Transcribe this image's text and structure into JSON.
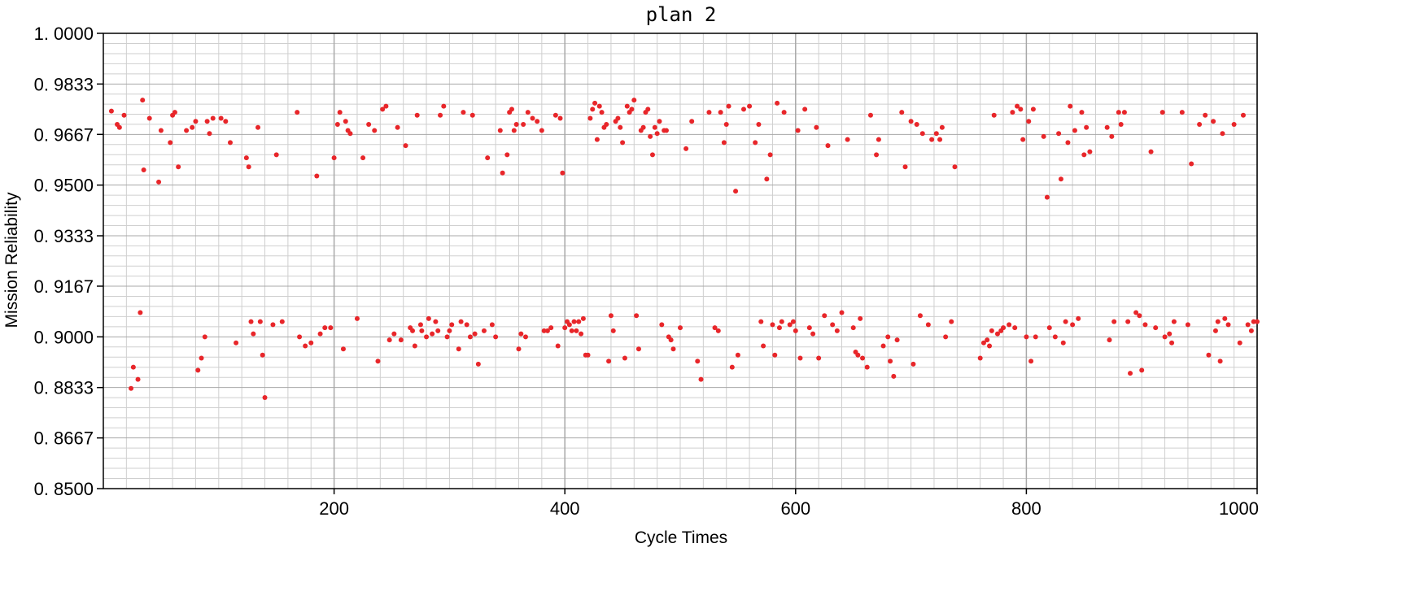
{
  "chart_data": {
    "type": "scatter",
    "title": "plan 2",
    "xlabel": "Cycle Times",
    "ylabel": "Mission Reliability",
    "xlim": [
      0,
      1000
    ],
    "ylim": [
      0.85,
      1.0
    ],
    "x_ticks": [
      200,
      400,
      600,
      800,
      1000
    ],
    "x_tick_labels": [
      "200",
      "400",
      "600",
      "800",
      "1000"
    ],
    "y_ticks": [
      0.85,
      0.8667,
      0.8833,
      0.9,
      0.9167,
      0.9333,
      0.95,
      0.9667,
      0.9833,
      1.0
    ],
    "y_tick_labels": [
      "0. 8500",
      "0. 8667",
      "0. 8833",
      "0. 9000",
      "0. 9167",
      "0. 9333",
      "0. 9500",
      "0. 9667",
      "0. 9833",
      "1. 0000"
    ],
    "grid": true,
    "marker_color": "#e8262a",
    "series": [
      {
        "points": [
          [
            7,
            0.9744
          ],
          [
            12,
            0.97
          ],
          [
            14,
            0.969
          ],
          [
            18,
            0.973
          ],
          [
            24,
            0.883
          ],
          [
            26,
            0.89
          ],
          [
            30,
            0.886
          ],
          [
            32,
            0.908
          ],
          [
            34,
            0.978
          ],
          [
            35,
            0.955
          ],
          [
            40,
            0.972
          ],
          [
            48,
            0.951
          ],
          [
            50,
            0.968
          ],
          [
            58,
            0.964
          ],
          [
            60,
            0.973
          ],
          [
            62,
            0.974
          ],
          [
            65,
            0.956
          ],
          [
            72,
            0.968
          ],
          [
            77,
            0.969
          ],
          [
            80,
            0.971
          ],
          [
            82,
            0.889
          ],
          [
            85,
            0.893
          ],
          [
            88,
            0.9
          ],
          [
            90,
            0.971
          ],
          [
            92,
            0.967
          ],
          [
            95,
            0.972
          ],
          [
            102,
            0.972
          ],
          [
            106,
            0.971
          ],
          [
            110,
            0.964
          ],
          [
            115,
            0.898
          ],
          [
            124,
            0.959
          ],
          [
            126,
            0.956
          ],
          [
            128,
            0.905
          ],
          [
            130,
            0.901
          ],
          [
            134,
            0.969
          ],
          [
            136,
            0.905
          ],
          [
            138,
            0.894
          ],
          [
            140,
            0.88
          ],
          [
            147,
            0.904
          ],
          [
            150,
            0.96
          ],
          [
            155,
            0.905
          ],
          [
            168,
            0.974
          ],
          [
            170,
            0.9
          ],
          [
            175,
            0.897
          ],
          [
            180,
            0.898
          ],
          [
            185,
            0.953
          ],
          [
            188,
            0.901
          ],
          [
            192,
            0.903
          ],
          [
            197,
            0.903
          ],
          [
            200,
            0.959
          ],
          [
            203,
            0.97
          ],
          [
            205,
            0.974
          ],
          [
            208,
            0.896
          ],
          [
            210,
            0.971
          ],
          [
            212,
            0.968
          ],
          [
            214,
            0.967
          ],
          [
            220,
            0.906
          ],
          [
            225,
            0.959
          ],
          [
            230,
            0.97
          ],
          [
            235,
            0.968
          ],
          [
            238,
            0.892
          ],
          [
            242,
            0.975
          ],
          [
            245,
            0.976
          ],
          [
            248,
            0.899
          ],
          [
            252,
            0.901
          ],
          [
            255,
            0.969
          ],
          [
            258,
            0.899
          ],
          [
            262,
            0.963
          ],
          [
            266,
            0.903
          ],
          [
            268,
            0.902
          ],
          [
            270,
            0.897
          ],
          [
            272,
            0.973
          ],
          [
            275,
            0.904
          ],
          [
            276,
            0.902
          ],
          [
            280,
            0.9
          ],
          [
            282,
            0.906
          ],
          [
            285,
            0.901
          ],
          [
            288,
            0.905
          ],
          [
            290,
            0.902
          ],
          [
            292,
            0.973
          ],
          [
            295,
            0.976
          ],
          [
            298,
            0.9
          ],
          [
            300,
            0.902
          ],
          [
            302,
            0.904
          ],
          [
            308,
            0.896
          ],
          [
            310,
            0.905
          ],
          [
            312,
            0.974
          ],
          [
            315,
            0.904
          ],
          [
            318,
            0.9
          ],
          [
            320,
            0.973
          ],
          [
            322,
            0.901
          ],
          [
            325,
            0.891
          ],
          [
            330,
            0.902
          ],
          [
            333,
            0.959
          ],
          [
            337,
            0.904
          ],
          [
            340,
            0.9
          ],
          [
            344,
            0.968
          ],
          [
            346,
            0.954
          ],
          [
            350,
            0.96
          ],
          [
            352,
            0.974
          ],
          [
            354,
            0.975
          ],
          [
            356,
            0.968
          ],
          [
            358,
            0.97
          ],
          [
            360,
            0.896
          ],
          [
            362,
            0.901
          ],
          [
            364,
            0.97
          ],
          [
            366,
            0.9
          ],
          [
            368,
            0.974
          ],
          [
            372,
            0.972
          ],
          [
            376,
            0.971
          ],
          [
            380,
            0.968
          ],
          [
            382,
            0.902
          ],
          [
            385,
            0.902
          ],
          [
            388,
            0.903
          ],
          [
            392,
            0.973
          ],
          [
            394,
            0.897
          ],
          [
            396,
            0.972
          ],
          [
            398,
            0.954
          ],
          [
            400,
            0.903
          ],
          [
            402,
            0.905
          ],
          [
            404,
            0.904
          ],
          [
            406,
            0.902
          ],
          [
            408,
            0.905
          ],
          [
            410,
            0.902
          ],
          [
            412,
            0.905
          ],
          [
            414,
            0.901
          ],
          [
            416,
            0.906
          ],
          [
            418,
            0.894
          ],
          [
            420,
            0.894
          ],
          [
            422,
            0.972
          ],
          [
            424,
            0.975
          ],
          [
            426,
            0.977
          ],
          [
            428,
            0.965
          ],
          [
            430,
            0.976
          ],
          [
            432,
            0.974
          ],
          [
            434,
            0.969
          ],
          [
            436,
            0.97
          ],
          [
            438,
            0.892
          ],
          [
            440,
            0.907
          ],
          [
            442,
            0.902
          ],
          [
            444,
            0.971
          ],
          [
            446,
            0.972
          ],
          [
            448,
            0.969
          ],
          [
            450,
            0.964
          ],
          [
            452,
            0.893
          ],
          [
            454,
            0.976
          ],
          [
            456,
            0.974
          ],
          [
            458,
            0.975
          ],
          [
            460,
            0.978
          ],
          [
            462,
            0.907
          ],
          [
            464,
            0.896
          ],
          [
            466,
            0.968
          ],
          [
            468,
            0.969
          ],
          [
            470,
            0.974
          ],
          [
            472,
            0.975
          ],
          [
            474,
            0.966
          ],
          [
            476,
            0.96
          ],
          [
            478,
            0.969
          ],
          [
            480,
            0.967
          ],
          [
            482,
            0.971
          ],
          [
            484,
            0.904
          ],
          [
            486,
            0.968
          ],
          [
            488,
            0.968
          ],
          [
            490,
            0.9
          ],
          [
            492,
            0.899
          ],
          [
            494,
            0.896
          ],
          [
            500,
            0.903
          ],
          [
            505,
            0.962
          ],
          [
            510,
            0.971
          ],
          [
            515,
            0.892
          ],
          [
            518,
            0.886
          ],
          [
            525,
            0.974
          ],
          [
            530,
            0.903
          ],
          [
            533,
            0.902
          ],
          [
            535,
            0.974
          ],
          [
            538,
            0.964
          ],
          [
            540,
            0.97
          ],
          [
            542,
            0.976
          ],
          [
            545,
            0.89
          ],
          [
            548,
            0.948
          ],
          [
            550,
            0.894
          ],
          [
            555,
            0.975
          ],
          [
            560,
            0.976
          ],
          [
            565,
            0.964
          ],
          [
            568,
            0.97
          ],
          [
            570,
            0.905
          ],
          [
            572,
            0.897
          ],
          [
            575,
            0.952
          ],
          [
            578,
            0.96
          ],
          [
            580,
            0.904
          ],
          [
            582,
            0.894
          ],
          [
            584,
            0.977
          ],
          [
            586,
            0.903
          ],
          [
            588,
            0.905
          ],
          [
            590,
            0.974
          ],
          [
            595,
            0.904
          ],
          [
            598,
            0.905
          ],
          [
            600,
            0.902
          ],
          [
            602,
            0.968
          ],
          [
            604,
            0.893
          ],
          [
            608,
            0.975
          ],
          [
            612,
            0.903
          ],
          [
            615,
            0.901
          ],
          [
            618,
            0.969
          ],
          [
            620,
            0.893
          ],
          [
            625,
            0.907
          ],
          [
            628,
            0.963
          ],
          [
            632,
            0.904
          ],
          [
            636,
            0.902
          ],
          [
            640,
            0.908
          ],
          [
            645,
            0.965
          ],
          [
            650,
            0.903
          ],
          [
            652,
            0.895
          ],
          [
            654,
            0.894
          ],
          [
            656,
            0.906
          ],
          [
            658,
            0.893
          ],
          [
            662,
            0.89
          ],
          [
            665,
            0.973
          ],
          [
            670,
            0.96
          ],
          [
            672,
            0.965
          ],
          [
            676,
            0.897
          ],
          [
            680,
            0.9
          ],
          [
            682,
            0.892
          ],
          [
            685,
            0.887
          ],
          [
            688,
            0.899
          ],
          [
            692,
            0.974
          ],
          [
            695,
            0.956
          ],
          [
            700,
            0.971
          ],
          [
            702,
            0.891
          ],
          [
            705,
            0.97
          ],
          [
            708,
            0.907
          ],
          [
            710,
            0.967
          ],
          [
            715,
            0.904
          ],
          [
            718,
            0.965
          ],
          [
            722,
            0.967
          ],
          [
            725,
            0.965
          ],
          [
            727,
            0.969
          ],
          [
            730,
            0.9
          ],
          [
            735,
            0.905
          ],
          [
            738,
            0.956
          ],
          [
            760,
            0.893
          ],
          [
            763,
            0.898
          ],
          [
            766,
            0.899
          ],
          [
            768,
            0.897
          ],
          [
            770,
            0.902
          ],
          [
            772,
            0.973
          ],
          [
            775,
            0.901
          ],
          [
            778,
            0.902
          ],
          [
            780,
            0.903
          ],
          [
            785,
            0.904
          ],
          [
            788,
            0.974
          ],
          [
            790,
            0.903
          ],
          [
            792,
            0.976
          ],
          [
            795,
            0.975
          ],
          [
            797,
            0.965
          ],
          [
            800,
            0.9
          ],
          [
            802,
            0.971
          ],
          [
            804,
            0.892
          ],
          [
            806,
            0.975
          ],
          [
            808,
            0.9
          ],
          [
            815,
            0.966
          ],
          [
            818,
            0.946
          ],
          [
            820,
            0.903
          ],
          [
            825,
            0.9
          ],
          [
            828,
            0.967
          ],
          [
            830,
            0.952
          ],
          [
            832,
            0.898
          ],
          [
            834,
            0.905
          ],
          [
            836,
            0.964
          ],
          [
            838,
            0.976
          ],
          [
            840,
            0.904
          ],
          [
            842,
            0.968
          ],
          [
            845,
            0.906
          ],
          [
            848,
            0.974
          ],
          [
            850,
            0.96
          ],
          [
            852,
            0.969
          ],
          [
            855,
            0.961
          ],
          [
            870,
            0.969
          ],
          [
            872,
            0.899
          ],
          [
            874,
            0.966
          ],
          [
            876,
            0.905
          ],
          [
            880,
            0.974
          ],
          [
            882,
            0.97
          ],
          [
            885,
            0.974
          ],
          [
            888,
            0.905
          ],
          [
            890,
            0.888
          ],
          [
            895,
            0.908
          ],
          [
            898,
            0.907
          ],
          [
            900,
            0.889
          ],
          [
            903,
            0.904
          ],
          [
            908,
            0.961
          ],
          [
            912,
            0.903
          ],
          [
            918,
            0.974
          ],
          [
            920,
            0.9
          ],
          [
            924,
            0.901
          ],
          [
            926,
            0.898
          ],
          [
            928,
            0.905
          ],
          [
            935,
            0.974
          ],
          [
            940,
            0.904
          ],
          [
            943,
            0.957
          ],
          [
            950,
            0.97
          ],
          [
            955,
            0.973
          ],
          [
            958,
            0.894
          ],
          [
            962,
            0.971
          ],
          [
            964,
            0.902
          ],
          [
            966,
            0.905
          ],
          [
            968,
            0.892
          ],
          [
            970,
            0.967
          ],
          [
            972,
            0.906
          ],
          [
            975,
            0.904
          ],
          [
            980,
            0.97
          ],
          [
            985,
            0.898
          ],
          [
            988,
            0.973
          ],
          [
            992,
            0.904
          ],
          [
            995,
            0.902
          ],
          [
            997,
            0.905
          ],
          [
            1000,
            0.905
          ]
        ]
      }
    ]
  }
}
